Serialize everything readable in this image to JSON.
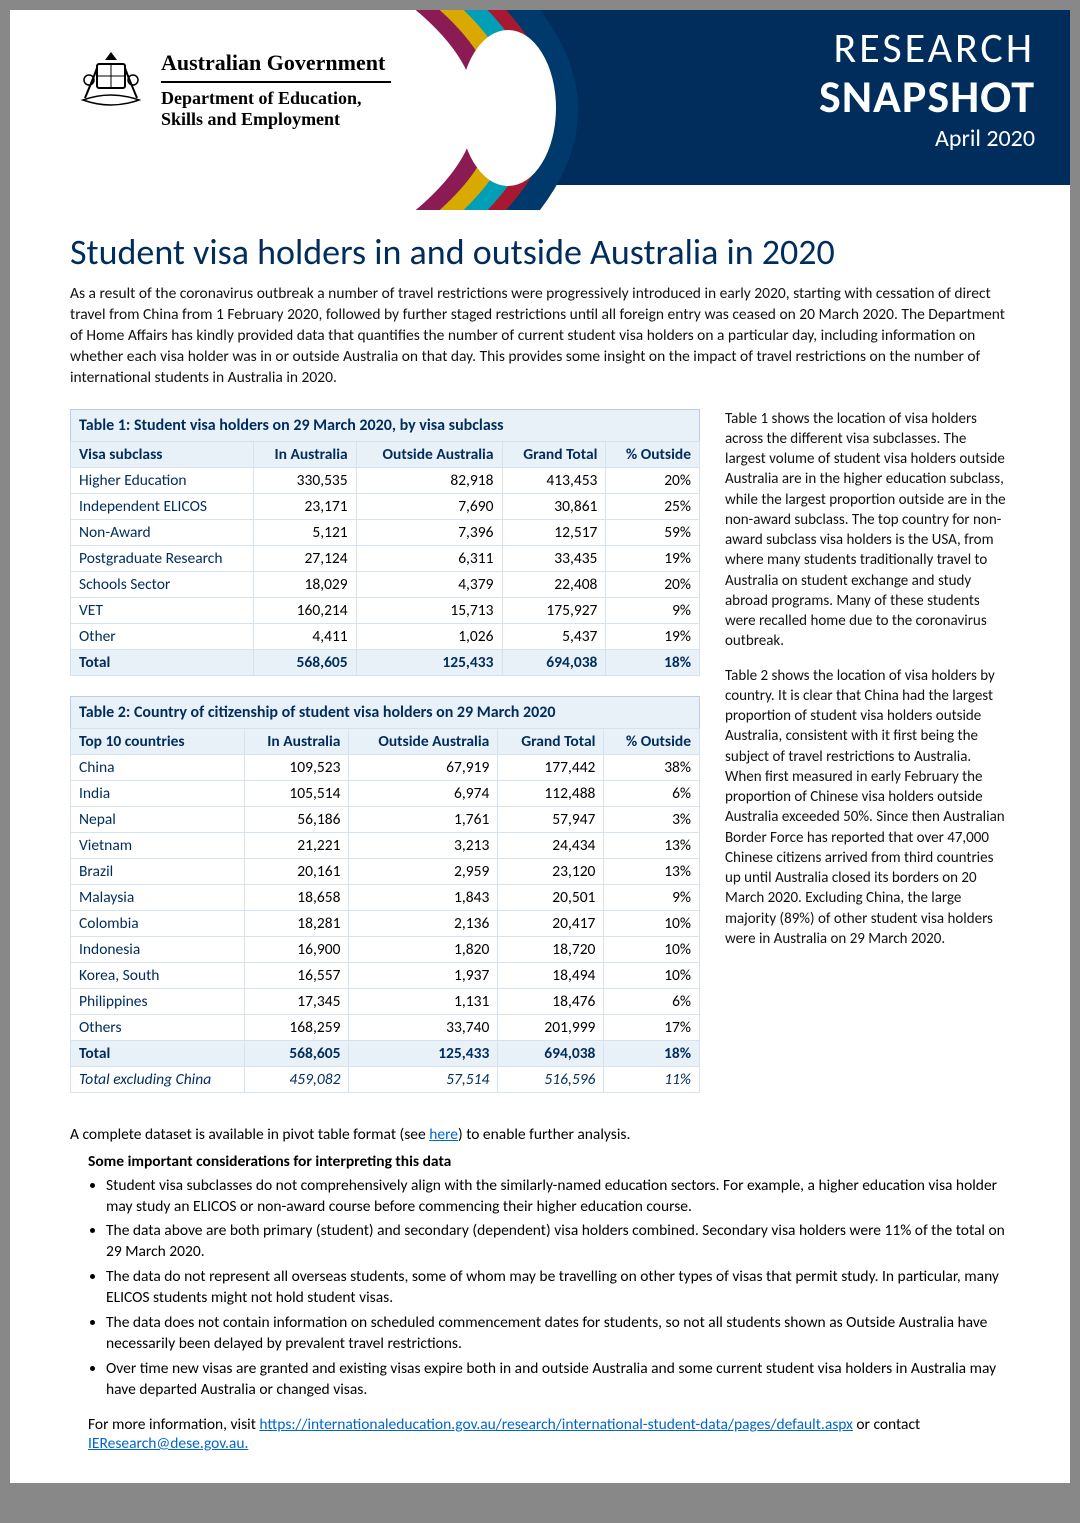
{
  "header": {
    "gov_line": "Australian Government",
    "dept_line1": "Department of Education,",
    "dept_line2": "Skills and Employment",
    "research_word": "RESEARCH",
    "snapshot_word": "SNAPSHOT",
    "snapshot_date": "April 2020",
    "ribbon_colors": [
      "#8a1b53",
      "#d9a900",
      "#009fb7",
      "#a71930",
      "#003a6d"
    ]
  },
  "title": "Student visa holders in and outside Australia in 2020",
  "intro": "As a result of the coronavirus outbreak a number of travel restrictions were progressively introduced in early 2020, starting with cessation of direct travel from China from 1 February 2020, followed by further staged restrictions until all foreign entry was ceased on 20 March 2020. The Department of Home Affairs has kindly provided data that quantifies the number of current student visa holders on a particular day, including information on whether each visa holder was in or outside Australia on that day. This provides some insight on the impact of travel restrictions on the number of international students in Australia in 2020.",
  "table1": {
    "caption": "Table 1: Student visa holders on 29 March 2020, by visa subclass",
    "columns": [
      "Visa subclass",
      "In Australia",
      "Outside Australia",
      "Grand Total",
      "% Outside"
    ],
    "rows": [
      [
        "Higher Education",
        "330,535",
        "82,918",
        "413,453",
        "20%"
      ],
      [
        "Independent ELICOS",
        "23,171",
        "7,690",
        "30,861",
        "25%"
      ],
      [
        "Non-Award",
        "5,121",
        "7,396",
        "12,517",
        "59%"
      ],
      [
        "Postgraduate Research",
        "27,124",
        "6,311",
        "33,435",
        "19%"
      ],
      [
        "Schools Sector",
        "18,029",
        "4,379",
        "22,408",
        "20%"
      ],
      [
        "VET",
        "160,214",
        "15,713",
        "175,927",
        "9%"
      ],
      [
        "Other",
        "4,411",
        "1,026",
        "5,437",
        "19%"
      ]
    ],
    "total": [
      "Total",
      "568,605",
      "125,433",
      "694,038",
      "18%"
    ]
  },
  "table2": {
    "caption": "Table 2: Country of citizenship of student visa holders on 29 March 2020",
    "columns": [
      "Top 10 countries",
      "In Australia",
      "Outside Australia",
      "Grand Total",
      "% Outside"
    ],
    "rows": [
      [
        "China",
        "109,523",
        "67,919",
        "177,442",
        "38%"
      ],
      [
        "India",
        "105,514",
        "6,974",
        "112,488",
        "6%"
      ],
      [
        "Nepal",
        "56,186",
        "1,761",
        "57,947",
        "3%"
      ],
      [
        "Vietnam",
        "21,221",
        "3,213",
        "24,434",
        "13%"
      ],
      [
        "Brazil",
        "20,161",
        "2,959",
        "23,120",
        "13%"
      ],
      [
        "Malaysia",
        "18,658",
        "1,843",
        "20,501",
        "9%"
      ],
      [
        "Colombia",
        "18,281",
        "2,136",
        "20,417",
        "10%"
      ],
      [
        "Indonesia",
        "16,900",
        "1,820",
        "18,720",
        "10%"
      ],
      [
        "Korea, South",
        "16,557",
        "1,937",
        "18,494",
        "10%"
      ],
      [
        "Philippines",
        "17,345",
        "1,131",
        "18,476",
        "6%"
      ],
      [
        "Others",
        "168,259",
        "33,740",
        "201,999",
        "17%"
      ]
    ],
    "total": [
      "Total",
      "568,605",
      "125,433",
      "694,038",
      "18%"
    ],
    "excl": [
      "Total excluding China",
      "459,082",
      "57,514",
      "516,596",
      "11%"
    ]
  },
  "side_para1": "Table 1 shows the location of visa holders across the different visa subclasses. The largest volume of student visa holders outside Australia are in the higher education subclass, while the largest proportion outside are in the non-award subclass. The top country for non-award subclass visa holders is the USA, from where many students traditionally travel to Australia on student exchange and study abroad programs. Many of these students were recalled home due to the coronavirus outbreak.",
  "side_para2": "Table 2 shows the location of visa holders by country. It is clear that China had the largest proportion of student visa holders outside Australia, consistent with it first being the subject of travel restrictions to Australia. When first measured in early February the proportion of Chinese visa holders outside Australia exceeded 50%. Since then Australian Border Force has reported that over 47,000 Chinese citizens arrived from third countries up until Australia closed its borders on 20 March 2020. Excluding China, the large majority (89%) of other student visa holders were in Australia on 29 March 2020.",
  "dataset_note_prefix": "A complete dataset is available in pivot table format (see ",
  "dataset_note_link": "here",
  "dataset_note_suffix": ") to enable further analysis.",
  "considerations_head": "Some important considerations for interpreting this data",
  "considerations": [
    "Student visa subclasses do not comprehensively align with the similarly-named education sectors. For example, a higher education visa holder may study an ELICOS or non-award course before commencing their higher education course.",
    "The data above are both primary (student) and secondary (dependent) visa holders combined. Secondary visa holders were 11% of the total on 29 March 2020.",
    "The data do not represent all overseas students, some of whom may be travelling on other types of visas that permit study. In particular, many ELICOS students might not hold student visas.",
    "The data does not contain information on scheduled commencement dates for students, so not all students shown as Outside Australia have necessarily been delayed by prevalent travel restrictions.",
    "Over time new visas are granted and existing visas expire both in and outside Australia and some current student visa holders in Australia may have departed Australia or changed visas."
  ],
  "footer_prefix": "For more information, visit ",
  "footer_link": "https://internationaleducation.gov.au/research/international-student-data/pages/default.aspx",
  "footer_mid": " or contact ",
  "footer_email": "IEResearch@dese.gov.au."
}
